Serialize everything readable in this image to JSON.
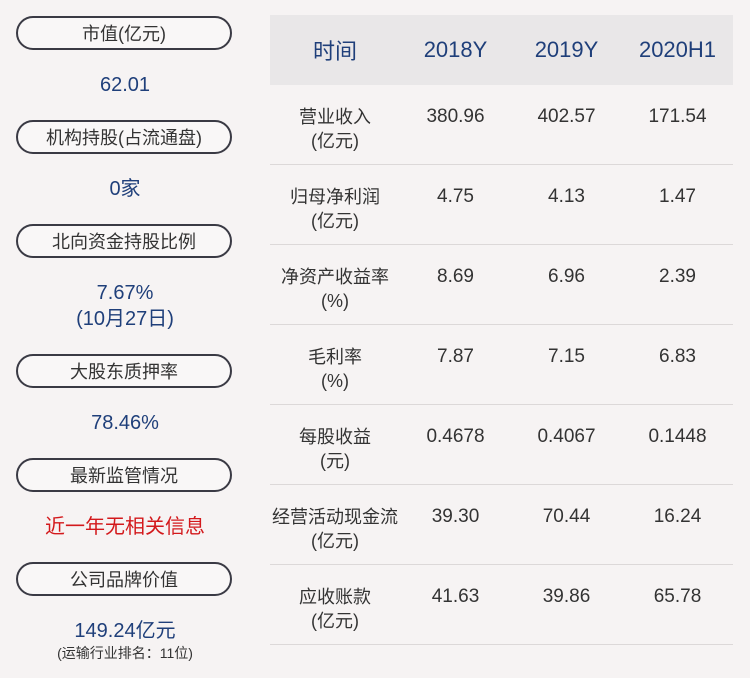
{
  "left": {
    "items": [
      {
        "label": "市值(亿元)",
        "value": "62.01"
      },
      {
        "label": "机构持股(占流通盘)",
        "value": "0家"
      },
      {
        "label": "北向资金持股比例",
        "value": "7.67%",
        "value2": "(10月27日)"
      },
      {
        "label": "大股东质押率",
        "value": "78.46%"
      },
      {
        "label": "最新监管情况",
        "value": "近一年无相关信息"
      },
      {
        "label": "公司品牌价值",
        "value": "149.24亿元",
        "note": "(运输行业排名：11位)"
      }
    ]
  },
  "table": {
    "header": [
      "时间",
      "2018Y",
      "2019Y",
      "2020H1"
    ],
    "rows": [
      {
        "label1": "营业收入",
        "label2": "(亿元)",
        "values": [
          "380.96",
          "402.57",
          "171.54"
        ]
      },
      {
        "label1": "归母净利润",
        "label2": "(亿元)",
        "values": [
          "4.75",
          "4.13",
          "1.47"
        ]
      },
      {
        "label1": "净资产收益率",
        "label2": "(%)",
        "values": [
          "8.69",
          "6.96",
          "2.39"
        ]
      },
      {
        "label1": "毛利率",
        "label2": "(%)",
        "values": [
          "7.87",
          "7.15",
          "6.83"
        ]
      },
      {
        "label1": "每股收益",
        "label2": "(元)",
        "values": [
          "0.4678",
          "0.4067",
          "0.1448"
        ]
      },
      {
        "label1": "经营活动现金流",
        "label2": "(亿元)",
        "values": [
          "39.30",
          "70.44",
          "16.24"
        ]
      },
      {
        "label1": "应收账款",
        "label2": "(亿元)",
        "values": [
          "41.63",
          "39.86",
          "65.78"
        ]
      }
    ]
  }
}
